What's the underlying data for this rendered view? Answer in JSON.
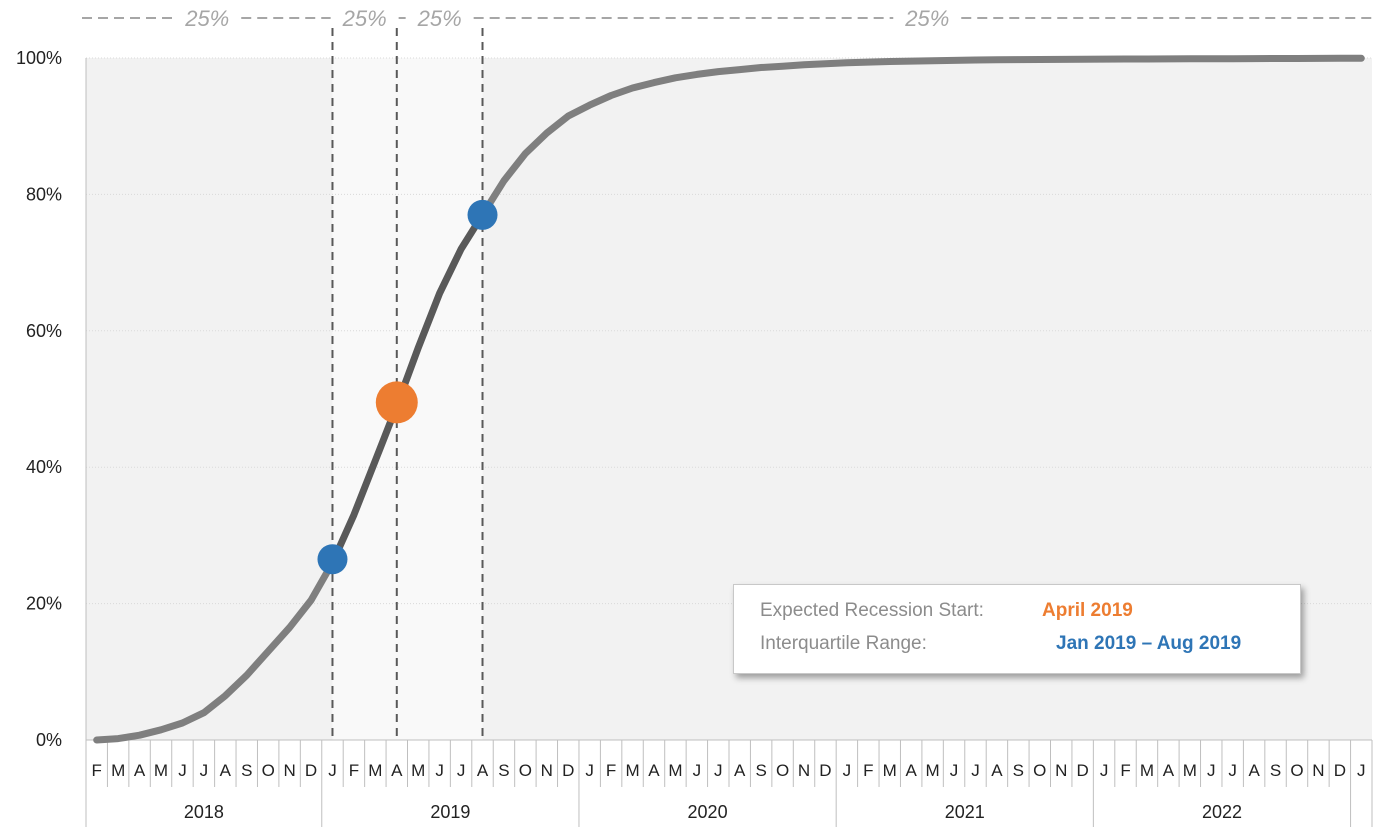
{
  "chart_data": {
    "type": "line",
    "ylabel": "",
    "xlabel": "",
    "ylim": [
      0,
      100
    ],
    "y_ticks": [
      "0%",
      "20%",
      "40%",
      "60%",
      "80%",
      "100%"
    ],
    "x_start": "2018-02",
    "x_end": "2023-01",
    "month_labels": [
      "F",
      "M",
      "A",
      "M",
      "J",
      "J",
      "A",
      "S",
      "O",
      "N",
      "D",
      "J",
      "F",
      "M",
      "A",
      "M",
      "J",
      "J",
      "A",
      "S",
      "O",
      "N",
      "D",
      "J",
      "F",
      "M",
      "A",
      "M",
      "J",
      "J",
      "A",
      "S",
      "O",
      "N",
      "D",
      "J",
      "F",
      "M",
      "A",
      "M",
      "J",
      "J",
      "A",
      "S",
      "O",
      "N",
      "D",
      "J",
      "F",
      "M",
      "A",
      "M",
      "J",
      "J",
      "A",
      "S",
      "O",
      "N",
      "D",
      "J"
    ],
    "year_labels": [
      "2018",
      "2019",
      "2020",
      "2021",
      "2022"
    ],
    "series": [
      {
        "values": [
          0,
          0.2,
          0.7,
          1.5,
          2.5,
          4,
          6.5,
          9.5,
          13,
          16.5,
          20.5,
          26,
          33,
          41,
          49,
          57.5,
          65.5,
          72,
          77,
          82,
          86,
          89,
          91.5,
          93.1,
          94.5,
          95.6,
          96.4,
          97.1,
          97.6,
          98,
          98.3,
          98.6,
          98.8,
          99,
          99.15,
          99.3,
          99.4,
          99.48,
          99.55,
          99.6,
          99.65,
          99.7,
          99.73,
          99.76,
          99.78,
          99.8,
          99.82,
          99.84,
          99.85,
          99.86,
          99.87,
          99.88,
          99.89,
          99.9,
          99.91,
          99.92,
          99.93,
          99.94,
          99.95,
          99.96
        ]
      }
    ],
    "markers": [
      {
        "x": "2019-01",
        "y": 26.5,
        "color": "#2e75b6",
        "size": "medium"
      },
      {
        "x": "2019-04",
        "y": 49.5,
        "color": "#ed7d31",
        "size": "large"
      },
      {
        "x": "2019-08",
        "y": 77,
        "color": "#2e75b6",
        "size": "medium"
      }
    ],
    "vertical_lines": [
      "2019-01",
      "2019-04",
      "2019-08"
    ],
    "segment_labels": [
      "25%",
      "25%",
      "25%",
      "25%"
    ],
    "colors": {
      "line_light": "#7f7f7f",
      "line_dark": "#595959",
      "plot_bg": "#f2f2f2",
      "band_bg": "#f9f9f9",
      "orange": "#ed7d31",
      "blue": "#2e75b6"
    },
    "legend": {
      "row1_label": "Expected Recession Start:",
      "row1_value": "April 2019",
      "row2_label": "Interquartile Range:",
      "row2_value": "Jan 2019 – Aug 2019"
    }
  }
}
